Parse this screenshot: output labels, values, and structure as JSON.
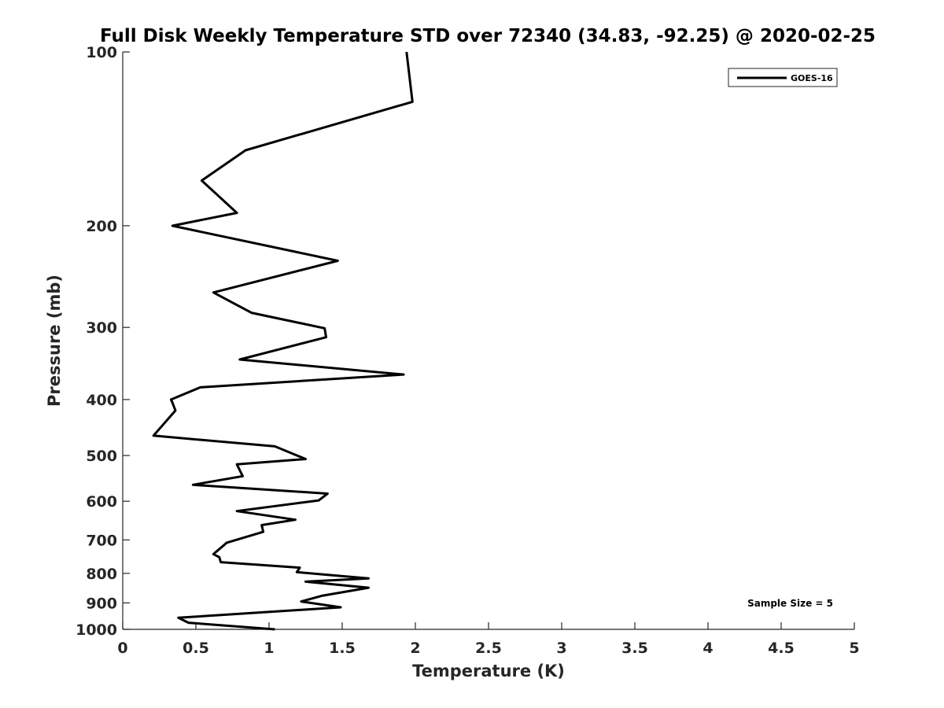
{
  "chart_data": {
    "type": "line",
    "title": "Full Disk Weekly Temperature STD over 72340 (34.83, -92.25) @ 2020-02-25",
    "xlabel": "Temperature (K)",
    "ylabel": "Pressure (mb)",
    "xlim": [
      0,
      5
    ],
    "ylim": [
      100,
      1000
    ],
    "yscale": "log",
    "y_reversed": true,
    "xticks": [
      0,
      0.5,
      1,
      1.5,
      2,
      2.5,
      3,
      3.5,
      4,
      4.5,
      5
    ],
    "xtick_labels": [
      "0",
      "0.5",
      "1",
      "1.5",
      "2",
      "2.5",
      "3",
      "3.5",
      "4",
      "4.5",
      "5"
    ],
    "yticks": [
      100,
      200,
      300,
      400,
      500,
      600,
      700,
      800,
      900,
      1000
    ],
    "ytick_labels": [
      "100",
      "200",
      "300",
      "400",
      "500",
      "600",
      "700",
      "800",
      "900",
      "1000"
    ],
    "grid": false,
    "legend_position": "top-right",
    "annotation": "Sample Size = 5",
    "series": [
      {
        "name": "GOES-16",
        "color": "#000000",
        "x": [
          1.94,
          1.98,
          0.84,
          0.54,
          0.78,
          0.34,
          1.47,
          0.62,
          0.88,
          1.38,
          1.39,
          0.8,
          1.92,
          0.53,
          0.33,
          0.34,
          0.36,
          0.21,
          1.04,
          1.25,
          0.78,
          0.82,
          0.48,
          1.4,
          1.34,
          0.78,
          1.18,
          0.95,
          0.96,
          0.71,
          0.7,
          0.62,
          0.66,
          0.67,
          1.21,
          1.19,
          1.68,
          1.25,
          1.68,
          1.36,
          1.22,
          1.49,
          0.38,
          0.45,
          1.04
        ],
        "y": [
          100,
          122,
          148,
          167,
          190,
          200,
          230,
          261,
          283,
          301,
          312,
          341,
          362,
          381,
          400,
          405,
          418,
          462,
          482,
          507,
          518,
          543,
          562,
          582,
          598,
          624,
          646,
          660,
          678,
          708,
          712,
          741,
          750,
          765,
          782,
          796,
          816,
          827,
          847,
          875,
          895,
          916,
          955,
          974,
          1000
        ]
      }
    ]
  }
}
